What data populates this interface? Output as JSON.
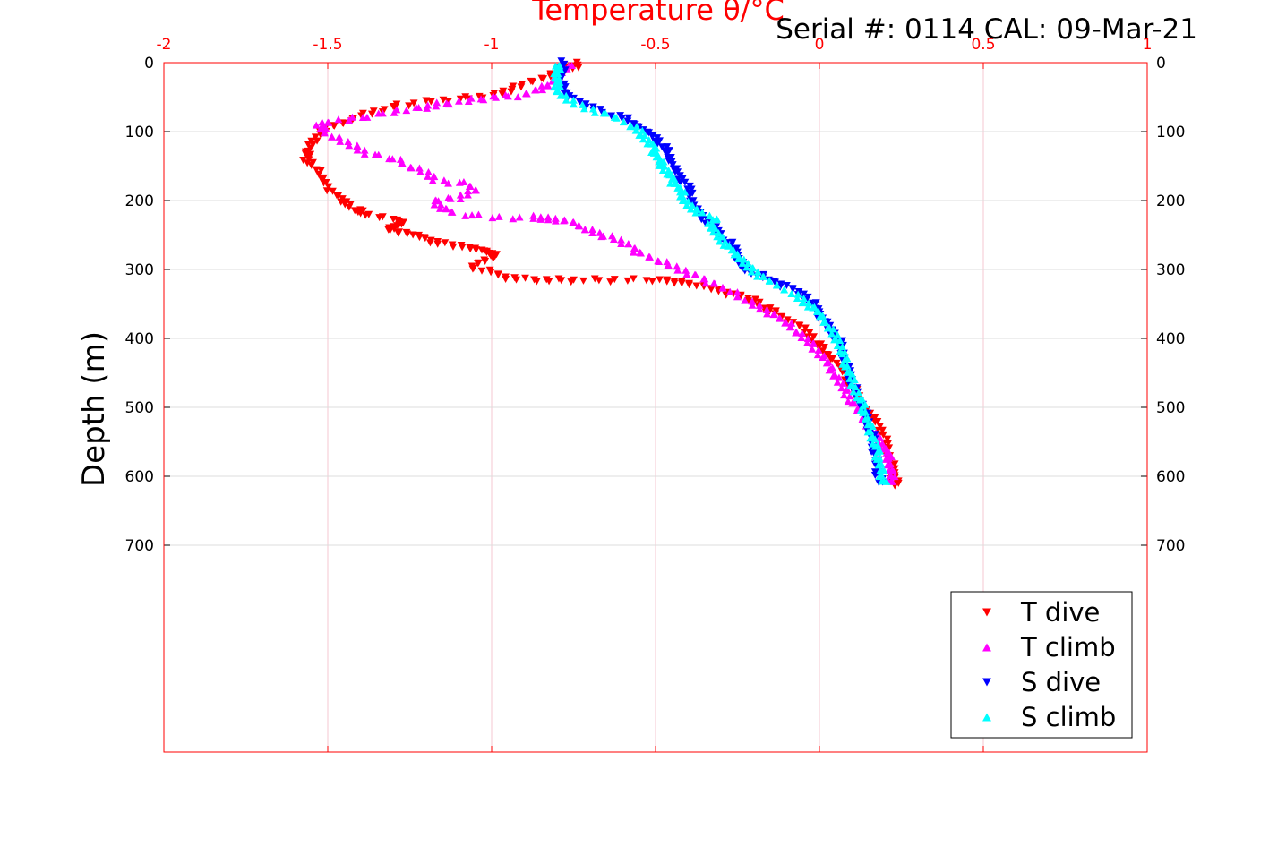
{
  "chart_data": {
    "type": "scatter",
    "title": "Temperature θ/°C",
    "annotation": "Serial #: 0114  CAL: 09-Mar-21",
    "xlabel": "Temperature θ/°C",
    "ylabel": "Depth (m)",
    "xlim": [
      -2,
      1
    ],
    "ylim": [
      0,
      1000
    ],
    "y_reversed": true,
    "x_axis_position": "top",
    "x_ticks": [
      -2,
      -1.5,
      -1,
      -0.5,
      0,
      0.5,
      1
    ],
    "x_tick_labels": [
      "-2",
      "-1.5",
      "-1",
      "-0.5",
      "0",
      "0.5",
      "1"
    ],
    "y_ticks": [
      0,
      100,
      200,
      300,
      400,
      500,
      600,
      700
    ],
    "y_tick_labels": [
      "0",
      "100",
      "200",
      "300",
      "400",
      "500",
      "600",
      "700"
    ],
    "grid": true,
    "legend_position": "bottom-right",
    "colors": {
      "axis": "#ff0000",
      "grid": "#f4c7d0",
      "t_dive": "#ff0000",
      "t_climb": "#ff00ff",
      "s_dive": "#0000ff",
      "s_climb": "#00ffff"
    },
    "series": [
      {
        "name": "T dive",
        "marker": "triangle-down",
        "color": "#ff0000",
        "points": [
          [
            -0.73,
            2
          ],
          [
            -0.76,
            8
          ],
          [
            -0.8,
            15
          ],
          [
            -0.84,
            22
          ],
          [
            -0.9,
            32
          ],
          [
            -0.95,
            40
          ],
          [
            -1.0,
            48
          ],
          [
            -1.08,
            52
          ],
          [
            -1.18,
            56
          ],
          [
            -1.28,
            62
          ],
          [
            -1.34,
            70
          ],
          [
            -1.4,
            78
          ],
          [
            -1.45,
            86
          ],
          [
            -1.5,
            95
          ],
          [
            -1.53,
            105
          ],
          [
            -1.55,
            118
          ],
          [
            -1.56,
            130
          ],
          [
            -1.57,
            140
          ],
          [
            -1.54,
            150
          ],
          [
            -1.52,
            165
          ],
          [
            -1.5,
            180
          ],
          [
            -1.47,
            195
          ],
          [
            -1.44,
            205
          ],
          [
            -1.41,
            215
          ],
          [
            -1.39,
            220
          ],
          [
            -1.3,
            228
          ],
          [
            -1.27,
            232
          ],
          [
            -1.29,
            238
          ],
          [
            -1.32,
            242
          ],
          [
            -1.26,
            248
          ],
          [
            -1.22,
            252
          ],
          [
            -1.18,
            260
          ],
          [
            -1.13,
            265
          ],
          [
            -1.07,
            268
          ],
          [
            -1.03,
            272
          ],
          [
            -1.01,
            276
          ],
          [
            -0.98,
            280
          ],
          [
            -1.03,
            288
          ],
          [
            -1.06,
            298
          ],
          [
            -1.0,
            305
          ],
          [
            -0.95,
            312
          ],
          [
            -0.88,
            315
          ],
          [
            -0.8,
            316
          ],
          [
            -0.72,
            316
          ],
          [
            -0.62,
            316
          ],
          [
            -0.5,
            316
          ],
          [
            -0.45,
            318
          ],
          [
            -0.4,
            320
          ],
          [
            -0.35,
            325
          ],
          [
            -0.3,
            332
          ],
          [
            -0.25,
            338
          ],
          [
            -0.2,
            345
          ],
          [
            -0.17,
            355
          ],
          [
            -0.13,
            365
          ],
          [
            -0.09,
            375
          ],
          [
            -0.05,
            385
          ],
          [
            -0.02,
            400
          ],
          [
            0.0,
            412
          ],
          [
            0.03,
            425
          ],
          [
            0.06,
            440
          ],
          [
            0.08,
            455
          ],
          [
            0.1,
            470
          ],
          [
            0.12,
            490
          ],
          [
            0.15,
            505
          ],
          [
            0.17,
            520
          ],
          [
            0.19,
            535
          ],
          [
            0.2,
            550
          ],
          [
            0.21,
            565
          ],
          [
            0.22,
            580
          ],
          [
            0.225,
            595
          ],
          [
            0.23,
            605
          ],
          [
            0.235,
            613
          ]
        ]
      },
      {
        "name": "T climb",
        "marker": "triangle-up",
        "color": "#ff00ff",
        "points": [
          [
            0.22,
            610
          ],
          [
            0.22,
            598
          ],
          [
            0.215,
            585
          ],
          [
            0.21,
            570
          ],
          [
            0.2,
            560
          ],
          [
            0.18,
            548
          ],
          [
            0.16,
            535
          ],
          [
            0.14,
            520
          ],
          [
            0.11,
            500
          ],
          [
            0.09,
            485
          ],
          [
            0.07,
            470
          ],
          [
            0.05,
            455
          ],
          [
            0.03,
            440
          ],
          [
            0.01,
            425
          ],
          [
            -0.02,
            410
          ],
          [
            -0.05,
            398
          ],
          [
            -0.08,
            385
          ],
          [
            -0.11,
            375
          ],
          [
            -0.14,
            365
          ],
          [
            -0.18,
            355
          ],
          [
            -0.22,
            345
          ],
          [
            -0.26,
            335
          ],
          [
            -0.3,
            325
          ],
          [
            -0.35,
            315
          ],
          [
            -0.4,
            305
          ],
          [
            -0.45,
            295
          ],
          [
            -0.5,
            285
          ],
          [
            -0.55,
            275
          ],
          [
            -0.58,
            265
          ],
          [
            -0.62,
            255
          ],
          [
            -0.68,
            248
          ],
          [
            -0.72,
            240
          ],
          [
            -0.75,
            232
          ],
          [
            -0.8,
            227
          ],
          [
            -0.84,
            225
          ],
          [
            -0.88,
            224
          ],
          [
            -1.0,
            224
          ],
          [
            -1.12,
            218
          ],
          [
            -1.15,
            210
          ],
          [
            -1.18,
            200
          ],
          [
            -1.1,
            195
          ],
          [
            -1.05,
            185
          ],
          [
            -1.08,
            175
          ],
          [
            -1.17,
            170
          ],
          [
            -1.2,
            160
          ],
          [
            -1.25,
            150
          ],
          [
            -1.3,
            140
          ],
          [
            -1.38,
            130
          ],
          [
            -1.42,
            120
          ],
          [
            -1.47,
            110
          ],
          [
            -1.51,
            100
          ],
          [
            -1.53,
            92
          ],
          [
            -1.49,
            85
          ],
          [
            -1.4,
            80
          ],
          [
            -1.3,
            70
          ],
          [
            -1.22,
            65
          ],
          [
            -1.16,
            60
          ],
          [
            -1.08,
            55
          ],
          [
            -1.0,
            50
          ],
          [
            -0.92,
            48
          ],
          [
            -0.86,
            40
          ],
          [
            -0.82,
            30
          ],
          [
            -0.8,
            20
          ],
          [
            -0.78,
            10
          ],
          [
            -0.76,
            3
          ]
        ]
      },
      {
        "name": "S dive",
        "marker": "triangle-down",
        "color": "#0000ff",
        "points": [
          [
            -0.78,
            0
          ],
          [
            -0.785,
            10
          ],
          [
            -0.79,
            20
          ],
          [
            -0.79,
            30
          ],
          [
            -0.78,
            40
          ],
          [
            -0.76,
            50
          ],
          [
            -0.72,
            60
          ],
          [
            -0.67,
            70
          ],
          [
            -0.6,
            80
          ],
          [
            -0.56,
            90
          ],
          [
            -0.53,
            100
          ],
          [
            -0.5,
            110
          ],
          [
            -0.48,
            120
          ],
          [
            -0.46,
            132
          ],
          [
            -0.45,
            145
          ],
          [
            -0.44,
            158
          ],
          [
            -0.42,
            170
          ],
          [
            -0.4,
            182
          ],
          [
            -0.39,
            195
          ],
          [
            -0.38,
            210
          ],
          [
            -0.36,
            222
          ],
          [
            -0.33,
            235
          ],
          [
            -0.31,
            248
          ],
          [
            -0.29,
            258
          ],
          [
            -0.26,
            268
          ],
          [
            -0.25,
            280
          ],
          [
            -0.24,
            292
          ],
          [
            -0.22,
            302
          ],
          [
            -0.18,
            310
          ],
          [
            -0.14,
            318
          ],
          [
            -0.1,
            325
          ],
          [
            -0.06,
            335
          ],
          [
            -0.03,
            345
          ],
          [
            -0.01,
            355
          ],
          [
            0.0,
            365
          ],
          [
            0.02,
            378
          ],
          [
            0.04,
            392
          ],
          [
            0.06,
            405
          ],
          [
            0.07,
            420
          ],
          [
            0.08,
            435
          ],
          [
            0.09,
            450
          ],
          [
            0.1,
            465
          ],
          [
            0.11,
            480
          ],
          [
            0.13,
            495
          ],
          [
            0.14,
            510
          ],
          [
            0.15,
            525
          ],
          [
            0.16,
            540
          ],
          [
            0.165,
            555
          ],
          [
            0.17,
            570
          ],
          [
            0.175,
            585
          ],
          [
            0.18,
            598
          ],
          [
            0.185,
            610
          ]
        ]
      },
      {
        "name": "S climb",
        "marker": "triangle-up",
        "color": "#00ffff",
        "points": [
          [
            0.2,
            610
          ],
          [
            0.19,
            598
          ],
          [
            0.185,
            585
          ],
          [
            0.18,
            570
          ],
          [
            0.17,
            555
          ],
          [
            0.16,
            540
          ],
          [
            0.15,
            525
          ],
          [
            0.14,
            510
          ],
          [
            0.13,
            495
          ],
          [
            0.115,
            480
          ],
          [
            0.1,
            465
          ],
          [
            0.09,
            450
          ],
          [
            0.08,
            435
          ],
          [
            0.07,
            420
          ],
          [
            0.06,
            405
          ],
          [
            0.04,
            392
          ],
          [
            0.02,
            378
          ],
          [
            0.0,
            365
          ],
          [
            -0.02,
            355
          ],
          [
            -0.05,
            345
          ],
          [
            -0.08,
            335
          ],
          [
            -0.12,
            325
          ],
          [
            -0.16,
            315
          ],
          [
            -0.19,
            305
          ],
          [
            -0.22,
            295
          ],
          [
            -0.24,
            285
          ],
          [
            -0.26,
            275
          ],
          [
            -0.28,
            265
          ],
          [
            -0.3,
            255
          ],
          [
            -0.32,
            245
          ],
          [
            -0.33,
            235
          ],
          [
            -0.32,
            225
          ],
          [
            -0.36,
            218
          ],
          [
            -0.39,
            210
          ],
          [
            -0.41,
            200
          ],
          [
            -0.42,
            190
          ],
          [
            -0.43,
            180
          ],
          [
            -0.45,
            170
          ],
          [
            -0.46,
            160
          ],
          [
            -0.48,
            150
          ],
          [
            -0.49,
            140
          ],
          [
            -0.5,
            130
          ],
          [
            -0.51,
            120
          ],
          [
            -0.53,
            110
          ],
          [
            -0.55,
            100
          ],
          [
            -0.58,
            90
          ],
          [
            -0.62,
            80
          ],
          [
            -0.68,
            70
          ],
          [
            -0.74,
            60
          ],
          [
            -0.78,
            50
          ],
          [
            -0.8,
            40
          ],
          [
            -0.8,
            30
          ],
          [
            -0.8,
            20
          ],
          [
            -0.8,
            10
          ],
          [
            -0.8,
            2
          ]
        ]
      }
    ]
  }
}
